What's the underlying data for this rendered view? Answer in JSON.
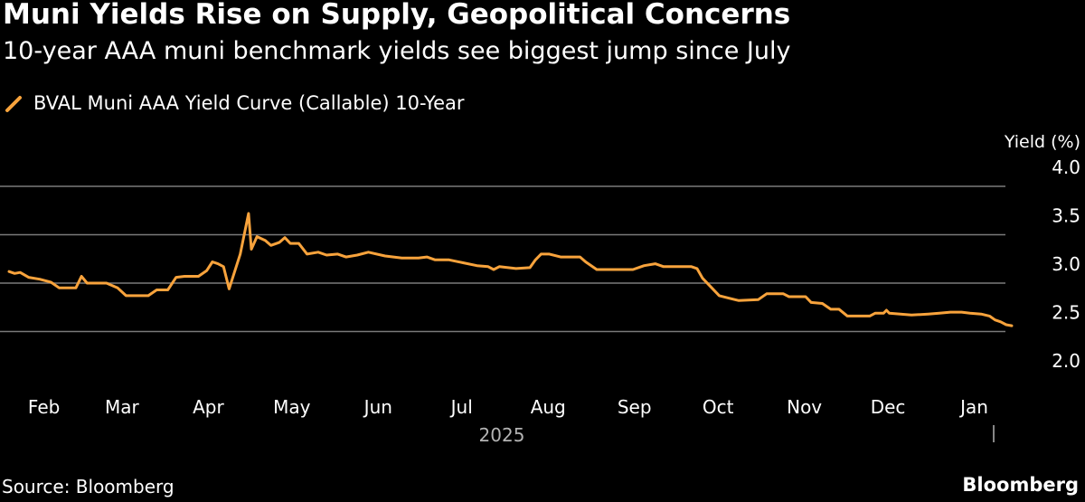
{
  "header": {
    "title": "Muni Yields Rise on Supply, Geopolitical Concerns",
    "subtitle": "10-year AAA muni benchmark yields see biggest jump since July"
  },
  "legend": {
    "label": "BVAL Muni AAA Yield Curve (Callable) 10-Year",
    "icon": "orange-line-icon"
  },
  "footer": {
    "source": "Source: Bloomberg",
    "brand": "Bloomberg"
  },
  "colors": {
    "background": "#000000",
    "series": "#F8A33C",
    "grid": "#7a7a7a",
    "text": "#ffffff",
    "muted": "#b3b3b3"
  },
  "chart_data": {
    "type": "line",
    "title": "Muni Yields Rise on Supply, Geopolitical Concerns",
    "subtitle": "10-year AAA muni benchmark yields see biggest jump since July",
    "ylabel": "Yield (%)",
    "xlabel": "",
    "year_label": "2025",
    "ylim": [
      2.0,
      4.0
    ],
    "yticks": [
      4.0,
      3.5,
      3.0,
      2.5,
      2.0
    ],
    "xlim": [
      "2025-01-24",
      "2026-01-19"
    ],
    "grid": true,
    "legend_position": "top-left",
    "x_tick_labels": [
      {
        "label": "Feb",
        "date": "2025-02-01"
      },
      {
        "label": "Mar",
        "date": "2025-03-01"
      },
      {
        "label": "Apr",
        "date": "2025-04-01"
      },
      {
        "label": "May",
        "date": "2025-05-01"
      },
      {
        "label": "Jun",
        "date": "2025-06-01"
      },
      {
        "label": "Jul",
        "date": "2025-07-01"
      },
      {
        "label": "Aug",
        "date": "2025-08-01"
      },
      {
        "label": "Sep",
        "date": "2025-09-01"
      },
      {
        "label": "Oct",
        "date": "2025-10-01"
      },
      {
        "label": "Nov",
        "date": "2025-11-01"
      },
      {
        "label": "Dec",
        "date": "2025-12-01"
      },
      {
        "label": "Jan",
        "date": "2026-01-01"
      }
    ],
    "series": [
      {
        "name": "BVAL Muni AAA Yield Curve (Callable) 10-Year",
        "color": "#F8A33C",
        "points": [
          [
            "2025-01-24",
            3.12
          ],
          [
            "2025-01-26",
            3.1
          ],
          [
            "2025-01-28",
            3.11
          ],
          [
            "2025-01-31",
            3.06
          ],
          [
            "2025-02-04",
            3.04
          ],
          [
            "2025-02-08",
            3.01
          ],
          [
            "2025-02-11",
            2.95
          ],
          [
            "2025-02-17",
            2.95
          ],
          [
            "2025-02-19",
            3.07
          ],
          [
            "2025-02-21",
            3.0
          ],
          [
            "2025-02-28",
            3.0
          ],
          [
            "2025-03-04",
            2.95
          ],
          [
            "2025-03-07",
            2.87
          ],
          [
            "2025-03-15",
            2.87
          ],
          [
            "2025-03-18",
            2.93
          ],
          [
            "2025-03-22",
            2.93
          ],
          [
            "2025-03-25",
            3.06
          ],
          [
            "2025-03-28",
            3.07
          ],
          [
            "2025-04-02",
            3.07
          ],
          [
            "2025-04-05",
            3.13
          ],
          [
            "2025-04-07",
            3.22
          ],
          [
            "2025-04-09",
            3.2
          ],
          [
            "2025-04-11",
            3.17
          ],
          [
            "2025-04-13",
            2.94
          ],
          [
            "2025-04-17",
            3.3
          ],
          [
            "2025-04-20",
            3.72
          ],
          [
            "2025-04-21",
            3.35
          ],
          [
            "2025-04-23",
            3.48
          ],
          [
            "2025-04-26",
            3.44
          ],
          [
            "2025-04-28",
            3.39
          ],
          [
            "2025-05-01",
            3.42
          ],
          [
            "2025-05-03",
            3.47
          ],
          [
            "2025-05-05",
            3.41
          ],
          [
            "2025-05-08",
            3.41
          ],
          [
            "2025-05-11",
            3.3
          ],
          [
            "2025-05-15",
            3.32
          ],
          [
            "2025-05-18",
            3.29
          ],
          [
            "2025-05-22",
            3.3
          ],
          [
            "2025-05-25",
            3.27
          ],
          [
            "2025-05-29",
            3.29
          ],
          [
            "2025-06-02",
            3.32
          ],
          [
            "2025-06-08",
            3.28
          ],
          [
            "2025-06-14",
            3.26
          ],
          [
            "2025-06-20",
            3.26
          ],
          [
            "2025-06-23",
            3.27
          ],
          [
            "2025-06-26",
            3.24
          ],
          [
            "2025-07-01",
            3.24
          ],
          [
            "2025-07-06",
            3.21
          ],
          [
            "2025-07-11",
            3.18
          ],
          [
            "2025-07-15",
            3.17
          ],
          [
            "2025-07-17",
            3.14
          ],
          [
            "2025-07-19",
            3.17
          ],
          [
            "2025-07-25",
            3.15
          ],
          [
            "2025-07-30",
            3.16
          ],
          [
            "2025-08-01",
            3.24
          ],
          [
            "2025-08-03",
            3.3
          ],
          [
            "2025-08-06",
            3.3
          ],
          [
            "2025-08-10",
            3.27
          ],
          [
            "2025-08-17",
            3.27
          ],
          [
            "2025-08-19",
            3.22
          ],
          [
            "2025-08-23",
            3.14
          ],
          [
            "2025-08-30",
            3.14
          ],
          [
            "2025-09-05",
            3.14
          ],
          [
            "2025-09-09",
            3.18
          ],
          [
            "2025-09-13",
            3.2
          ],
          [
            "2025-09-16",
            3.17
          ],
          [
            "2025-09-20",
            3.17
          ],
          [
            "2025-09-26",
            3.17
          ],
          [
            "2025-09-28",
            3.15
          ],
          [
            "2025-09-30",
            3.05
          ],
          [
            "2025-10-03",
            2.96
          ],
          [
            "2025-10-06",
            2.87
          ],
          [
            "2025-10-10",
            2.84
          ],
          [
            "2025-10-13",
            2.82
          ],
          [
            "2025-10-20",
            2.83
          ],
          [
            "2025-10-23",
            2.89
          ],
          [
            "2025-10-29",
            2.89
          ],
          [
            "2025-10-31",
            2.86
          ],
          [
            "2025-11-06",
            2.86
          ],
          [
            "2025-11-08",
            2.8
          ],
          [
            "2025-11-12",
            2.79
          ],
          [
            "2025-11-15",
            2.73
          ],
          [
            "2025-11-18",
            2.73
          ],
          [
            "2025-11-21",
            2.66
          ],
          [
            "2025-11-24",
            2.66
          ],
          [
            "2025-11-29",
            2.66
          ],
          [
            "2025-12-01",
            2.69
          ],
          [
            "2025-12-04",
            2.69
          ],
          [
            "2025-12-05",
            2.72
          ],
          [
            "2025-12-06",
            2.69
          ],
          [
            "2025-12-10",
            2.68
          ],
          [
            "2025-12-14",
            2.67
          ],
          [
            "2025-12-20",
            2.68
          ],
          [
            "2025-12-24",
            2.69
          ],
          [
            "2025-12-28",
            2.7
          ],
          [
            "2026-01-01",
            2.7
          ],
          [
            "2026-01-04",
            2.69
          ],
          [
            "2026-01-08",
            2.68
          ],
          [
            "2026-01-11",
            2.66
          ],
          [
            "2026-01-13",
            2.62
          ],
          [
            "2026-01-15",
            2.6
          ],
          [
            "2026-01-17",
            2.57
          ],
          [
            "2026-01-19",
            2.56
          ]
        ]
      }
    ]
  }
}
